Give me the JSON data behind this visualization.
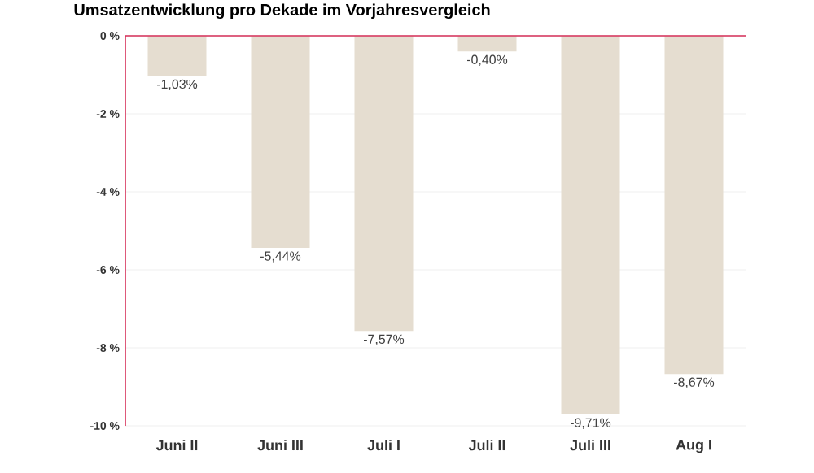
{
  "chart_data": {
    "type": "bar",
    "title": "Umsatzentwicklung pro Dekade im Vorjahresvergleich",
    "categories": [
      "Juni II",
      "Juni III",
      "Juli I",
      "Juli II",
      "Juli III",
      "Aug I"
    ],
    "values": [
      -1.03,
      -5.44,
      -7.57,
      -0.4,
      -9.71,
      -8.67
    ],
    "value_labels": [
      "-1,03%",
      "-5,44%",
      "-7,57%",
      "-0,40%",
      "-9,71%",
      "-8,67%"
    ],
    "color": "#e5ddd0",
    "ylim": [
      -10,
      0
    ],
    "yticks": [
      {
        "value": 0,
        "label": "0 %"
      },
      {
        "value": -2,
        "label": "-2 %"
      },
      {
        "value": -4,
        "label": "-4 %"
      },
      {
        "value": -6,
        "label": "-6 %"
      },
      {
        "value": -8,
        "label": "-8 %"
      },
      {
        "value": -10,
        "label": "-10 %"
      }
    ],
    "grid": "y"
  }
}
